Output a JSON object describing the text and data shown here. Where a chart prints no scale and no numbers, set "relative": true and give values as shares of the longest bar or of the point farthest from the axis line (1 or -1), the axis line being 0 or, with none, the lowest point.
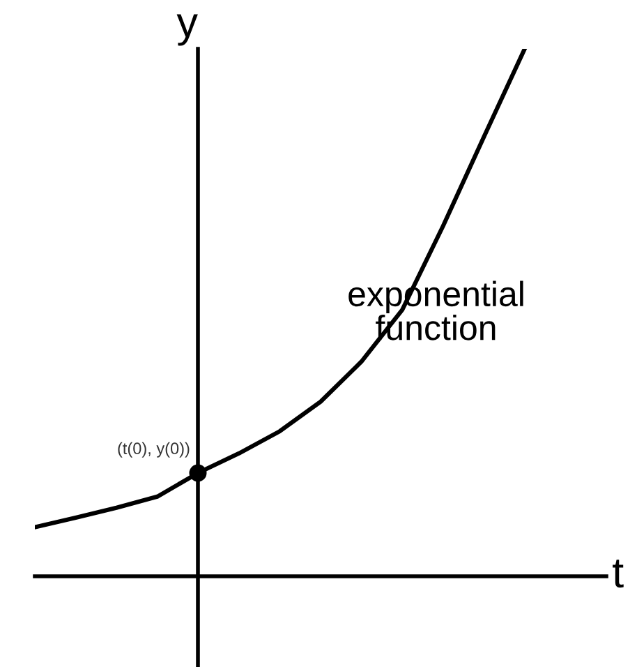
{
  "chart_data": {
    "type": "line",
    "relative": true,
    "xlabel": "t",
    "ylabel": "y",
    "categories": [
      null,
      null,
      null,
      null,
      null,
      null,
      null,
      null,
      null,
      null,
      null,
      null,
      null
    ],
    "series": [
      {
        "color": "#000000",
        "values": [
          0.093,
          0.111,
          0.13,
          0.151,
          0.196,
          0.233,
          0.275,
          0.331,
          0.407,
          0.505,
          0.664,
          0.833,
          1.0
        ]
      }
    ],
    "annotations": [
      "(t(0), y(0))",
      "exponential\nfunction"
    ]
  }
}
